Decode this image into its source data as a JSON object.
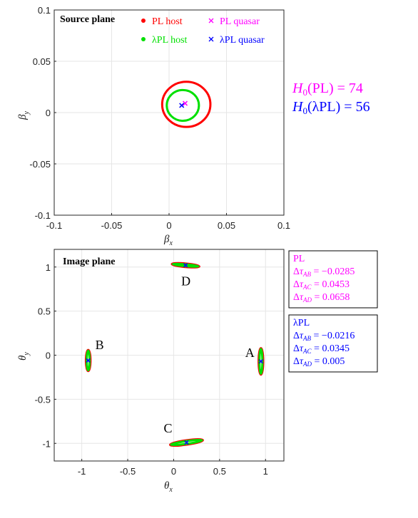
{
  "chart_data": [
    {
      "type": "scatter",
      "title": "Source plane",
      "xlabel": "β_x",
      "ylabel": "β_y",
      "xlim": [
        -0.1,
        0.1
      ],
      "ylim": [
        -0.1,
        0.1
      ],
      "xticks": [
        "-0.1",
        "-0.05",
        "0",
        "0.05",
        "0.1"
      ],
      "yticks": [
        "-0.1",
        "-0.05",
        "0",
        "0.05",
        "0.1"
      ],
      "grid": true,
      "legend_position": "top-right",
      "series": [
        {
          "name": "PL host",
          "marker": "dot",
          "color": "#ff0000",
          "ellipse": {
            "cx": 0.015,
            "cy": 0.008,
            "rx": 0.021,
            "ry": 0.022
          }
        },
        {
          "name": "λPL host",
          "marker": "dot",
          "color": "#00e000",
          "ellipse": {
            "cx": 0.012,
            "cy": 0.007,
            "rx": 0.014,
            "ry": 0.015
          }
        },
        {
          "name": "PL quasar",
          "marker": "x",
          "color": "#ff00ff",
          "points": [
            {
              "x": 0.014,
              "y": 0.009
            }
          ]
        },
        {
          "name": "λPL quasar",
          "marker": "x",
          "color": "#0000ff",
          "points": [
            {
              "x": 0.011,
              "y": 0.007
            }
          ]
        }
      ],
      "annotations": [
        {
          "lhs": "H",
          "sub": "0",
          "arg": "PL",
          "value": "74",
          "color": "#ff00ff"
        },
        {
          "lhs": "H",
          "sub": "0",
          "arg": "λPL",
          "value": "56",
          "color": "#0000ff"
        }
      ]
    },
    {
      "type": "scatter",
      "title": "Image plane",
      "xlabel": "θ_x",
      "ylabel": "θ_y",
      "xlim": [
        -1.3,
        1.2
      ],
      "ylim": [
        -1.2,
        1.2
      ],
      "xticks": [
        "-1",
        "-0.5",
        "0",
        "0.5",
        "1"
      ],
      "yticks": [
        "-1",
        "-0.5",
        "0",
        "0.5",
        "1"
      ],
      "grid": true,
      "images": [
        {
          "name": "A",
          "x": 0.95,
          "y": -0.07,
          "rx": 0.025,
          "ry": 0.15,
          "angle": 0
        },
        {
          "name": "B",
          "x": -0.93,
          "y": -0.06,
          "rx": 0.025,
          "ry": 0.12,
          "angle": 0
        },
        {
          "name": "C",
          "x": 0.14,
          "y": -0.99,
          "rx": 0.18,
          "ry": 0.025,
          "angle": -8
        },
        {
          "name": "D",
          "x": 0.13,
          "y": 1.02,
          "rx": 0.15,
          "ry": 0.02,
          "angle": 5
        }
      ],
      "image_series": [
        {
          "name": "PL host",
          "color": "#ff0000"
        },
        {
          "name": "λPL host",
          "color": "#00e000"
        },
        {
          "name": "λPL quasar",
          "color": "#0000ff"
        }
      ],
      "delay_boxes": [
        {
          "title": "PL",
          "color": "#ff00ff",
          "rows": [
            {
              "sub": "AB",
              "value": "−0.0285"
            },
            {
              "sub": "AC",
              "value": "0.0453"
            },
            {
              "sub": "AD",
              "value": "0.0658"
            }
          ]
        },
        {
          "title": "λPL",
          "color": "#0000ff",
          "rows": [
            {
              "sub": "AB",
              "value": "−0.0216"
            },
            {
              "sub": "AC",
              "value": "0.0345"
            },
            {
              "sub": "AD",
              "value": "0.005"
            }
          ]
        }
      ]
    }
  ]
}
